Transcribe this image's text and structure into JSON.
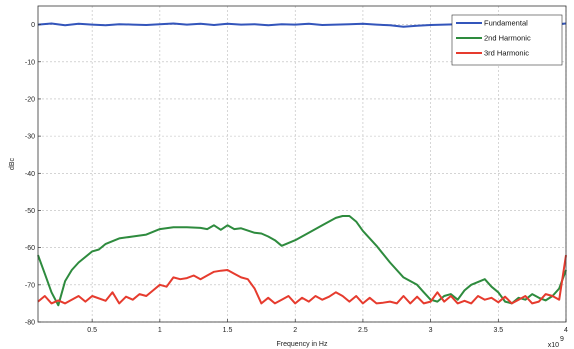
{
  "chart_data": {
    "type": "line",
    "xlabel": "Frequency in Hz",
    "ylabel": "dBc",
    "x_exponent_label": "x10",
    "x_exponent": "9",
    "xlim": [
      0.1,
      4.0
    ],
    "ylim": [
      -80,
      5
    ],
    "xticks": [
      0.5,
      1,
      1.5,
      2,
      2.5,
      3,
      3.5,
      4
    ],
    "xtick_labels": [
      "0.5",
      "1",
      "1.5",
      "2",
      "2.5",
      "3",
      "3.5",
      "4"
    ],
    "yticks": [
      0,
      -10,
      -20,
      -30,
      -40,
      -50,
      -60,
      -70,
      -80
    ],
    "ytick_labels": [
      "0",
      "-10",
      "-20",
      "-30",
      "-40",
      "-50",
      "-60",
      "-70",
      "-80"
    ],
    "grid": true,
    "legend_position": "top-right",
    "series": [
      {
        "name": "Fundamental",
        "color": "#3355bb",
        "x": [
          0.1,
          0.2,
          0.3,
          0.4,
          0.5,
          0.6,
          0.7,
          0.8,
          0.9,
          1.0,
          1.1,
          1.2,
          1.3,
          1.4,
          1.5,
          1.6,
          1.7,
          1.8,
          1.9,
          2.0,
          2.1,
          2.2,
          2.3,
          2.4,
          2.5,
          2.6,
          2.7,
          2.8,
          2.9,
          3.0,
          3.1,
          3.2,
          3.3,
          3.4,
          3.5,
          3.6,
          3.7,
          3.8,
          3.9,
          4.0
        ],
        "y": [
          0,
          0.3,
          -0.2,
          0.2,
          0,
          -0.2,
          0.1,
          0,
          -0.1,
          0.1,
          0.3,
          0,
          0.2,
          -0.1,
          0.2,
          0,
          0.1,
          -0.2,
          0.1,
          0,
          0.2,
          -0.1,
          0,
          0.1,
          0.2,
          0,
          -0.2,
          -0.6,
          -0.3,
          -0.1,
          0,
          0.1,
          -0.2,
          0,
          0.2,
          0,
          0.1,
          0.2,
          0,
          0.3
        ]
      },
      {
        "name": "2nd Harmonic",
        "color": "#2e8b3e",
        "x": [
          0.1,
          0.15,
          0.2,
          0.25,
          0.3,
          0.35,
          0.4,
          0.5,
          0.55,
          0.6,
          0.7,
          0.8,
          0.9,
          1.0,
          1.1,
          1.2,
          1.3,
          1.35,
          1.4,
          1.45,
          1.5,
          1.55,
          1.6,
          1.7,
          1.75,
          1.8,
          1.85,
          1.9,
          2.0,
          2.1,
          2.2,
          2.3,
          2.35,
          2.4,
          2.45,
          2.5,
          2.6,
          2.7,
          2.8,
          2.9,
          2.95,
          3.0,
          3.05,
          3.1,
          3.15,
          3.2,
          3.25,
          3.3,
          3.4,
          3.45,
          3.5,
          3.55,
          3.6,
          3.65,
          3.7,
          3.75,
          3.8,
          3.85,
          3.9,
          3.95,
          4.0
        ],
        "y": [
          -62,
          -67,
          -72,
          -75.5,
          -69,
          -66,
          -64,
          -61,
          -60.5,
          -59,
          -57.5,
          -57,
          -56.5,
          -55,
          -54.5,
          -54.5,
          -54.7,
          -55,
          -54,
          -55.2,
          -54,
          -55,
          -54.8,
          -56,
          -56.2,
          -57,
          -58,
          -59.5,
          -58,
          -56,
          -54,
          -52,
          -51.5,
          -51.5,
          -53,
          -55.5,
          -59.5,
          -64,
          -68,
          -70,
          -72,
          -74,
          -74.5,
          -73,
          -72.5,
          -74,
          -71.5,
          -70,
          -68.5,
          -70.5,
          -72,
          -74.5,
          -75,
          -73.5,
          -74,
          -72.5,
          -73.5,
          -74.2,
          -73,
          -71,
          -66
        ]
      },
      {
        "name": "3rd Harmonic",
        "color": "#e63b2e",
        "x": [
          0.1,
          0.15,
          0.2,
          0.25,
          0.3,
          0.4,
          0.45,
          0.5,
          0.6,
          0.65,
          0.7,
          0.75,
          0.8,
          0.85,
          0.9,
          0.95,
          1.0,
          1.05,
          1.1,
          1.15,
          1.2,
          1.25,
          1.3,
          1.35,
          1.4,
          1.45,
          1.5,
          1.55,
          1.6,
          1.65,
          1.7,
          1.75,
          1.8,
          1.85,
          1.9,
          1.95,
          2.0,
          2.05,
          2.1,
          2.15,
          2.2,
          2.25,
          2.3,
          2.35,
          2.4,
          2.45,
          2.5,
          2.55,
          2.6,
          2.65,
          2.7,
          2.75,
          2.8,
          2.85,
          2.9,
          2.95,
          3.0,
          3.05,
          3.1,
          3.15,
          3.2,
          3.25,
          3.3,
          3.35,
          3.4,
          3.45,
          3.5,
          3.55,
          3.6,
          3.65,
          3.7,
          3.75,
          3.8,
          3.85,
          3.9,
          3.95,
          4.0
        ],
        "y": [
          -74.5,
          -73,
          -75,
          -74.2,
          -75,
          -73,
          -74.5,
          -73,
          -74.3,
          -72,
          -75,
          -73.2,
          -74,
          -72.5,
          -73,
          -71.5,
          -70,
          -70.5,
          -68,
          -68.5,
          -68.2,
          -67.5,
          -68.5,
          -67.5,
          -66.5,
          -66.2,
          -66,
          -67,
          -68,
          -68.5,
          -71,
          -75,
          -73.5,
          -75,
          -74,
          -73,
          -75,
          -73.5,
          -74.5,
          -73,
          -74,
          -73.2,
          -72,
          -73,
          -74.5,
          -73,
          -75,
          -73.5,
          -75,
          -74.8,
          -74.5,
          -75,
          -73,
          -75,
          -73.2,
          -75,
          -74.5,
          -72,
          -74.5,
          -73,
          -75,
          -74.3,
          -75,
          -73,
          -74,
          -73.5,
          -74.7,
          -73.2,
          -75,
          -74,
          -73,
          -75,
          -74.5,
          -72.5,
          -73,
          -74,
          -62
        ]
      }
    ]
  }
}
